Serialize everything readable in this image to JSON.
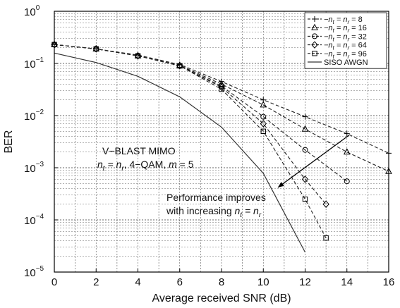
{
  "chart_data": {
    "type": "line",
    "xlabel": "Average received SNR (dB)",
    "ylabel": "BER",
    "xlim": [
      0,
      16
    ],
    "ylim": [
      1e-05,
      1
    ],
    "yscale": "log",
    "grid": true,
    "legend_position": "top-right",
    "xticks": [
      "0",
      "2",
      "4",
      "6",
      "8",
      "10",
      "12",
      "14",
      "16"
    ],
    "yticks": [
      {
        "base": "10",
        "exp": "0"
      },
      {
        "base": "10",
        "exp": "−1"
      },
      {
        "base": "10",
        "exp": "−2"
      },
      {
        "base": "10",
        "exp": "−3"
      },
      {
        "base": "10",
        "exp": "−4"
      },
      {
        "base": "10",
        "exp": "−5"
      }
    ],
    "series": [
      {
        "name": "n_t = n_r = 8",
        "legend": {
          "pre": "−n",
          "sub1": "t",
          "mid": " = n",
          "sub2": "r",
          "post": " = 8"
        },
        "marker": "plus",
        "dash": true,
        "x": [
          0,
          2,
          4,
          6,
          8,
          10,
          12,
          14,
          16
        ],
        "y": [
          0.23,
          0.19,
          0.145,
          0.095,
          0.045,
          0.02,
          0.0095,
          0.0045,
          0.0019
        ]
      },
      {
        "name": "n_t = n_r = 16",
        "legend": {
          "pre": "−n",
          "sub1": "t",
          "mid": " = n",
          "sub2": "r",
          "post": " = 16"
        },
        "marker": "triangle",
        "dash": true,
        "x": [
          0,
          2,
          4,
          6,
          8,
          10,
          12,
          14,
          16
        ],
        "y": [
          0.23,
          0.19,
          0.14,
          0.092,
          0.04,
          0.016,
          0.0055,
          0.002,
          0.00085
        ]
      },
      {
        "name": "n_t = n_r = 32",
        "legend": {
          "pre": "−n",
          "sub1": "t",
          "mid": " = n",
          "sub2": "r",
          "post": " = 32"
        },
        "marker": "circle",
        "dash": true,
        "x": [
          0,
          2,
          4,
          6,
          8,
          10,
          12,
          14
        ],
        "y": [
          0.23,
          0.19,
          0.14,
          0.09,
          0.037,
          0.0095,
          0.0022,
          0.00055
        ]
      },
      {
        "name": "n_t = n_r = 64",
        "legend": {
          "pre": "−n",
          "sub1": "t",
          "mid": " = n",
          "sub2": "r",
          "post": " = 64"
        },
        "marker": "diamond",
        "dash": true,
        "x": [
          0,
          2,
          4,
          6,
          8,
          10,
          12,
          13
        ],
        "y": [
          0.23,
          0.19,
          0.14,
          0.09,
          0.035,
          0.007,
          0.0006,
          0.0002
        ]
      },
      {
        "name": "n_t = n_r = 96",
        "legend": {
          "pre": "−n",
          "sub1": "t",
          "mid": " = n",
          "sub2": "r",
          "post": " = 96"
        },
        "marker": "square",
        "dash": true,
        "x": [
          0,
          2,
          4,
          6,
          8,
          10,
          12,
          13
        ],
        "y": [
          0.23,
          0.19,
          0.14,
          0.09,
          0.032,
          0.005,
          0.00025,
          4.5e-05
        ]
      },
      {
        "name": "SISO AWGN",
        "legend": {
          "pre": "SISO AWGN",
          "sub1": "",
          "mid": "",
          "sub2": "",
          "post": ""
        },
        "marker": "none",
        "dash": false,
        "x": [
          0,
          2,
          4,
          6,
          8,
          10,
          12
        ],
        "y": [
          0.158,
          0.104,
          0.0565,
          0.0229,
          0.006,
          0.00078,
          2.4e-05
        ]
      }
    ],
    "annotations": {
      "system": {
        "line1": "V−BLAST MIMO",
        "n1": "n",
        "s1": "t",
        "eq": " = n",
        "s2": "r",
        "rest": ", 4−QAM, ",
        "m": "m",
        "mval": " = 5"
      },
      "trend": {
        "line1": "Performance improves",
        "line2pre": "with increasing ",
        "n1": "n",
        "s1": "t",
        "eq": " = n",
        "s2": "r"
      }
    }
  }
}
